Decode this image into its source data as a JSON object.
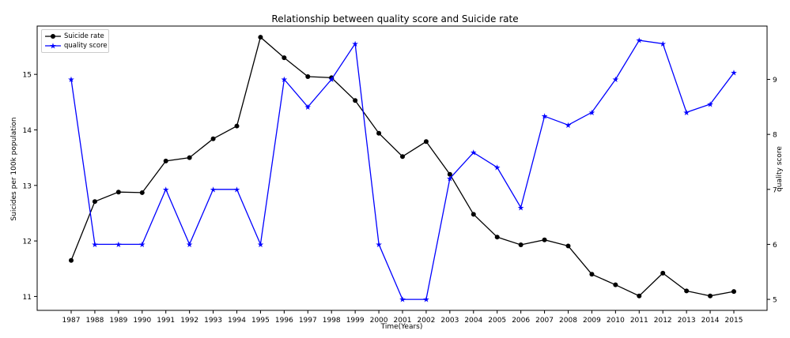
{
  "chart_data": {
    "type": "line",
    "title": "Relationship between quality score and Suicide rate",
    "xlabel": "Time(Years)",
    "ylabel_left": "Suicides per 100k population",
    "ylabel_right": "quality score",
    "categories": [
      "1987",
      "1988",
      "1989",
      "1990",
      "1991",
      "1992",
      "1993",
      "1994",
      "1995",
      "1996",
      "1997",
      "1998",
      "1999",
      "2000",
      "2001",
      "2002",
      "2003",
      "2004",
      "2005",
      "2006",
      "2007",
      "2008",
      "2009",
      "2010",
      "2011",
      "2012",
      "2013",
      "2014",
      "2015"
    ],
    "series": [
      {
        "name": "Suicide rate",
        "axis": "left",
        "color": "#000000",
        "marker": "circle",
        "values": [
          11.65,
          12.71,
          12.88,
          12.87,
          13.44,
          13.5,
          13.84,
          14.07,
          15.67,
          15.3,
          14.96,
          14.94,
          14.53,
          13.94,
          13.52,
          13.79,
          13.2,
          12.48,
          12.07,
          11.93,
          12.02,
          11.91,
          11.4,
          11.21,
          11.01,
          11.42,
          11.1,
          11.01,
          11.09
        ]
      },
      {
        "name": "quality score",
        "axis": "right",
        "color": "#0000ff",
        "marker": "star",
        "values": [
          9.0,
          6.0,
          6.0,
          6.0,
          7.0,
          6.0,
          7.0,
          7.0,
          6.0,
          9.0,
          8.5,
          9.0,
          9.65,
          6.0,
          5.0,
          5.0,
          7.2,
          7.67,
          7.4,
          6.67,
          8.33,
          8.17,
          8.4,
          9.0,
          9.71,
          9.65,
          8.4,
          8.55,
          9.12
        ]
      }
    ],
    "ylim_left": [
      10.75,
      15.87
    ],
    "yticks_left": [
      11,
      12,
      13,
      14,
      15
    ],
    "ylim_right": [
      4.8,
      9.97
    ],
    "yticks_right": [
      5,
      6,
      7,
      8,
      9
    ],
    "grid": false,
    "legend_position": "top-left"
  }
}
